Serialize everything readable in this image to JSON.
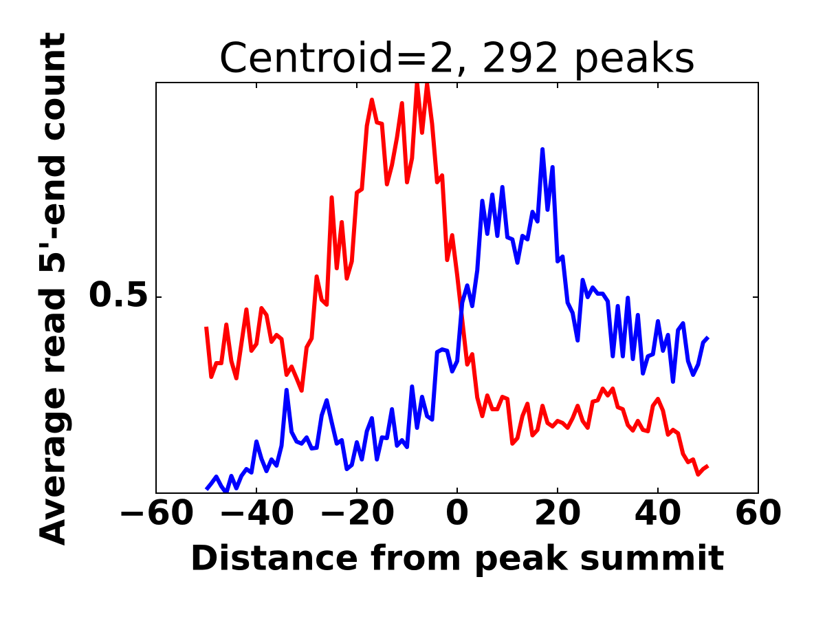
{
  "chart_data": {
    "type": "line",
    "title": "Centroid=2, 292 peaks",
    "xlabel": "Distance from peak summit",
    "ylabel": "Average read 5'-end count",
    "x": [
      -50,
      -49,
      -48,
      -47,
      -46,
      -45,
      -44,
      -43,
      -42,
      -41,
      -40,
      -39,
      -38,
      -37,
      -36,
      -35,
      -34,
      -33,
      -32,
      -31,
      -30,
      -29,
      -28,
      -27,
      -26,
      -25,
      -24,
      -23,
      -22,
      -21,
      -20,
      -19,
      -18,
      -17,
      -16,
      -15,
      -14,
      -13,
      -12,
      -11,
      -10,
      -9,
      -8,
      -7,
      -6,
      -5,
      -4,
      -3,
      -2,
      -1,
      0,
      1,
      2,
      3,
      4,
      5,
      6,
      7,
      8,
      9,
      10,
      11,
      12,
      13,
      14,
      15,
      16,
      17,
      18,
      19,
      20,
      21,
      22,
      23,
      24,
      25,
      26,
      27,
      28,
      29,
      30,
      31,
      32,
      33,
      34,
      35,
      36,
      37,
      38,
      39,
      40,
      41,
      42,
      43,
      44,
      45,
      46,
      47,
      48,
      49,
      50
    ],
    "series": [
      {
        "color": "#ff0000",
        "values": [
          0.457,
          0.384,
          0.404,
          0.404,
          0.46,
          0.407,
          0.382,
          0.432,
          0.482,
          0.422,
          0.432,
          0.484,
          0.474,
          0.435,
          0.445,
          0.439,
          0.387,
          0.399,
          0.382,
          0.364,
          0.427,
          0.44,
          0.53,
          0.496,
          0.489,
          0.645,
          0.542,
          0.609,
          0.527,
          0.552,
          0.652,
          0.657,
          0.749,
          0.787,
          0.754,
          0.752,
          0.664,
          0.692,
          0.732,
          0.782,
          0.667,
          0.702,
          0.812,
          0.739,
          0.81,
          0.752,
          0.667,
          0.677,
          0.554,
          0.59,
          0.532,
          0.467,
          0.402,
          0.417,
          0.354,
          0.327,
          0.357,
          0.337,
          0.337,
          0.355,
          0.352,
          0.287,
          0.295,
          0.327,
          0.345,
          0.299,
          0.307,
          0.342,
          0.317,
          0.312,
          0.32,
          0.317,
          0.31,
          0.324,
          0.342,
          0.32,
          0.31,
          0.348,
          0.35,
          0.367,
          0.357,
          0.367,
          0.34,
          0.337,
          0.314,
          0.306,
          0.32,
          0.307,
          0.305,
          0.342,
          0.352,
          0.335,
          0.3,
          0.307,
          0.302,
          0.272,
          0.26,
          0.264,
          0.242,
          0.25,
          0.255
        ]
      },
      {
        "color": "#0000ff",
        "values": [
          0.22,
          0.229,
          0.239,
          0.225,
          0.215,
          0.24,
          0.222,
          0.24,
          0.25,
          0.245,
          0.29,
          0.265,
          0.247,
          0.264,
          0.255,
          0.284,
          0.365,
          0.304,
          0.29,
          0.287,
          0.296,
          0.28,
          0.281,
          0.328,
          0.35,
          0.318,
          0.287,
          0.292,
          0.25,
          0.256,
          0.289,
          0.264,
          0.305,
          0.324,
          0.264,
          0.296,
          0.295,
          0.337,
          0.284,
          0.292,
          0.282,
          0.37,
          0.31,
          0.355,
          0.327,
          0.322,
          0.42,
          0.424,
          0.422,
          0.392,
          0.407,
          0.492,
          0.517,
          0.487,
          0.539,
          0.64,
          0.592,
          0.649,
          0.589,
          0.66,
          0.587,
          0.584,
          0.55,
          0.589,
          0.584,
          0.624,
          0.61,
          0.715,
          0.627,
          0.689,
          0.552,
          0.559,
          0.492,
          0.477,
          0.437,
          0.525,
          0.5,
          0.514,
          0.505,
          0.505,
          0.494,
          0.414,
          0.487,
          0.414,
          0.499,
          0.41,
          0.474,
          0.389,
          0.414,
          0.417,
          0.465,
          0.422,
          0.445,
          0.377,
          0.452,
          0.462,
          0.407,
          0.387,
          0.402,
          0.434,
          0.442
        ]
      }
    ],
    "xlim": [
      -60,
      60
    ],
    "xticks": [
      {
        "value": -60,
        "label": "−60"
      },
      {
        "value": -40,
        "label": "−40"
      },
      {
        "value": -20,
        "label": "−20"
      },
      0,
      20,
      40,
      60
    ],
    "ylim": [
      0.215,
      0.812
    ],
    "yticks": [
      0.5
    ]
  }
}
